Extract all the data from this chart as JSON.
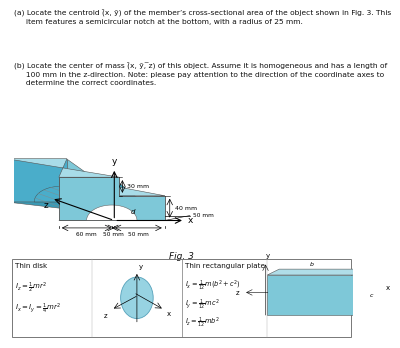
{
  "body_color": "#7ec8d8",
  "body_color_dark": "#4aadca",
  "body_color_top": "#a8dce8",
  "body_color_side": "#3a9ab5",
  "background": "#ffffff",
  "text_color": "#111111",
  "annotation_color": "#333333",
  "disk_color": "#8ccfdf",
  "rect_color_front": "#7ec8d8",
  "rect_color_top": "#b0dde8",
  "rect_color_side": "#4aadca",
  "text_a": "(a) Locate the centroid (̄x, ȳ) of the member’s cross-sectional area of the object shown in Fig. 3. This\n     item features a semicircular notch at the bottom, with a radius of 25 mm.",
  "text_b": "(b) Locate the center of mass (̄x, ȳ, ̅z) of this object. Assume it is homogeneous and has a length of\n     100 mm in the z-direction. Note: please pay attention to the direction of the coordinate axes to\n     determine the correct coordinates.",
  "fig_caption": "Fig. 3",
  "thin_disk_title": "Thin disk",
  "thin_rect_title": "Thin rectangular plate"
}
